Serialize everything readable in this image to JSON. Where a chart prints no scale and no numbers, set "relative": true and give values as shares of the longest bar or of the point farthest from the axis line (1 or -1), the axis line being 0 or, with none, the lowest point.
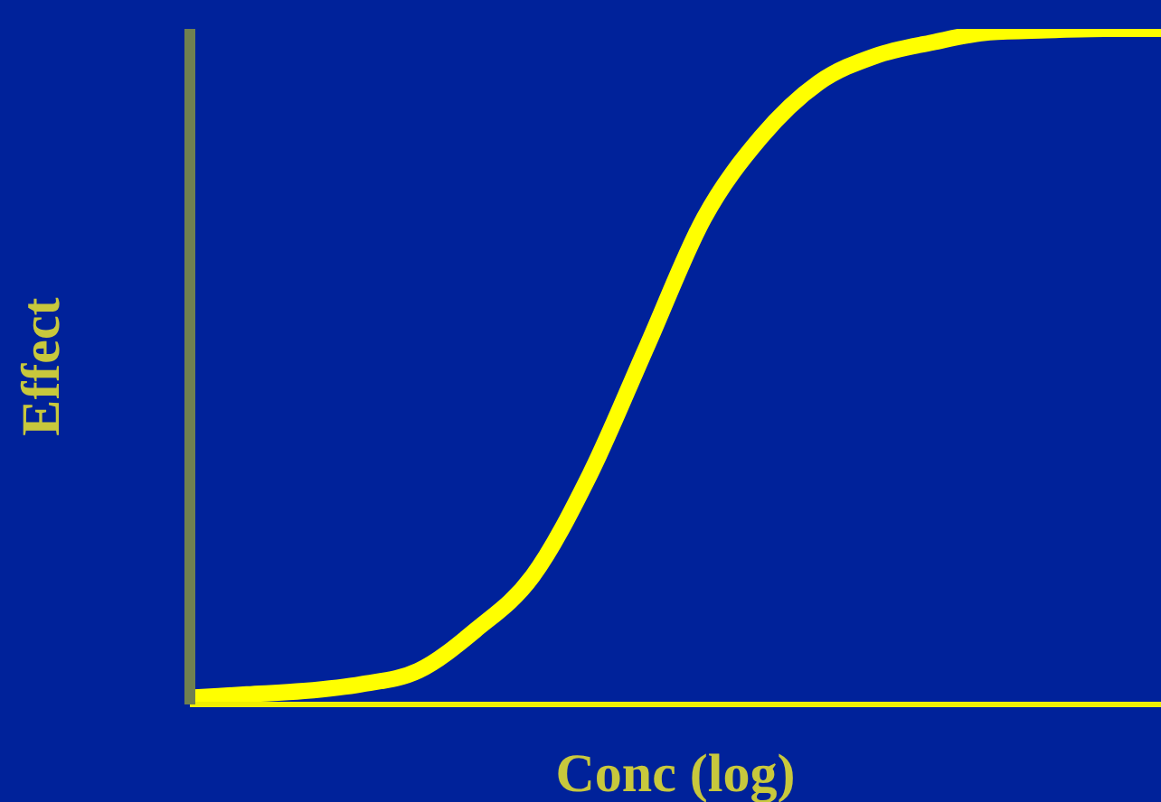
{
  "chart_data": {
    "type": "line",
    "relative": true,
    "xlabel": "Conc (log)",
    "ylabel": "Effect",
    "categories": [
      null,
      null,
      null,
      null,
      null,
      null,
      null,
      null,
      null,
      null,
      null,
      null,
      null,
      null,
      null,
      null,
      null,
      null
    ],
    "series": [
      {
        "color": "#ffff00",
        "values": [
          0.01,
          0.015,
          0.02,
          0.03,
          0.05,
          0.11,
          0.19,
          0.34,
          0.53,
          0.72,
          0.84,
          0.92,
          0.96,
          0.98,
          0.995,
          0.998,
          1,
          1
        ]
      }
    ]
  }
}
